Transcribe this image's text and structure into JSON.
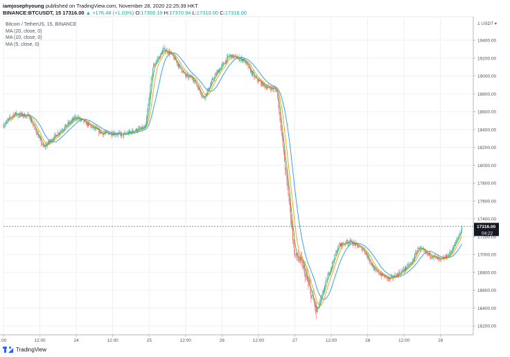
{
  "header": {
    "author": "iamjosephyoung",
    "published_text": "published on TradingView.com, November 28, 2020 22:25:39 HKT",
    "symbol": "BINANCE:BTCUSDT, 15",
    "last": "17316.00",
    "change": "▲ +176.48 (+1.03%)",
    "o_label": "O:",
    "o_value": "17359.19",
    "h_label": "H:",
    "h_value": "17370.94",
    "l_label": "L:",
    "l_value": "17310.00",
    "c_label": "C:",
    "c_value": "17316.00"
  },
  "legend": {
    "title": "Bitcoin / TetherUS, 15, BINANCE",
    "ma20": "MA (20, close, 0)",
    "ma10": "MA (10, close, 0)",
    "ma5": "MA (5, close, 0)"
  },
  "footer": {
    "brand": "TradingView"
  },
  "colors": {
    "up": "#26a69a",
    "down": "#ef5350",
    "ma20": "#2196f3",
    "ma10": "#ff9800",
    "ma5": "#4caf50",
    "grid": "#eef0f3",
    "price_label_bg": "#131722"
  },
  "chart_data": {
    "type": "candlestick",
    "currency_label": "1 USDT ▾",
    "current_price_label": "17316.00",
    "countdown_label": "04:22",
    "ylim": [
      16100,
      19650
    ],
    "y_ticks": [
      16200,
      16400,
      16600,
      16800,
      17000,
      17200,
      17400,
      17600,
      17800,
      18000,
      18200,
      18400,
      18600,
      18800,
      19000,
      19200,
      19400
    ],
    "y_tick_labels": [
      "16200.00",
      "16400.00",
      "16600.00",
      "16800.00",
      "17000.00",
      "17200.00",
      "17400.00",
      "17600.00",
      "17800.00",
      "18000.00",
      "18200.00",
      "18400.00",
      "18600.00",
      "18800.00",
      "19000.00",
      "19200.00",
      "19400.00"
    ],
    "x_ticks": [
      0,
      0.5,
      1,
      1.5,
      2,
      2.5,
      3,
      3.5,
      4,
      4.5,
      5,
      5.5,
      6
    ],
    "x_tick_labels": [
      ":00",
      "12:00",
      "24",
      "12:00",
      "25",
      "12:00",
      "26",
      "12:00",
      "27",
      "12:00",
      "28",
      "12:00",
      "29"
    ],
    "xlim": [
      0,
      6.45
    ],
    "last_price": 17316,
    "anchors": {
      "t": [
        0,
        0.15,
        0.35,
        0.55,
        0.8,
        1.0,
        1.35,
        1.5,
        1.65,
        1.8,
        1.95,
        2.05,
        2.2,
        2.3,
        2.5,
        2.6,
        2.75,
        2.9,
        3.1,
        3.3,
        3.45,
        3.6,
        3.75,
        3.9,
        4.0,
        4.1,
        4.3,
        4.45,
        4.6,
        4.75,
        4.95,
        5.1,
        5.3,
        5.45,
        5.6,
        5.7,
        5.8,
        5.9,
        6.0,
        6.12,
        6.22,
        6.3
      ],
      "price": [
        18450,
        18580,
        18550,
        18200,
        18400,
        18540,
        18360,
        18360,
        18340,
        18390,
        18420,
        19100,
        19300,
        19250,
        19000,
        18980,
        18750,
        19000,
        19230,
        19180,
        18980,
        18880,
        18850,
        17750,
        17000,
        16900,
        16350,
        16750,
        17100,
        17150,
        17050,
        16820,
        16720,
        16800,
        16900,
        17080,
        17010,
        16980,
        16930,
        17000,
        17150,
        17316
      ]
    },
    "series": [
      {
        "name": "MA (20, close, 0)",
        "period": 20
      },
      {
        "name": "MA (10, close, 0)",
        "period": 10
      },
      {
        "name": "MA (5, close, 0)",
        "period": 5
      }
    ]
  }
}
